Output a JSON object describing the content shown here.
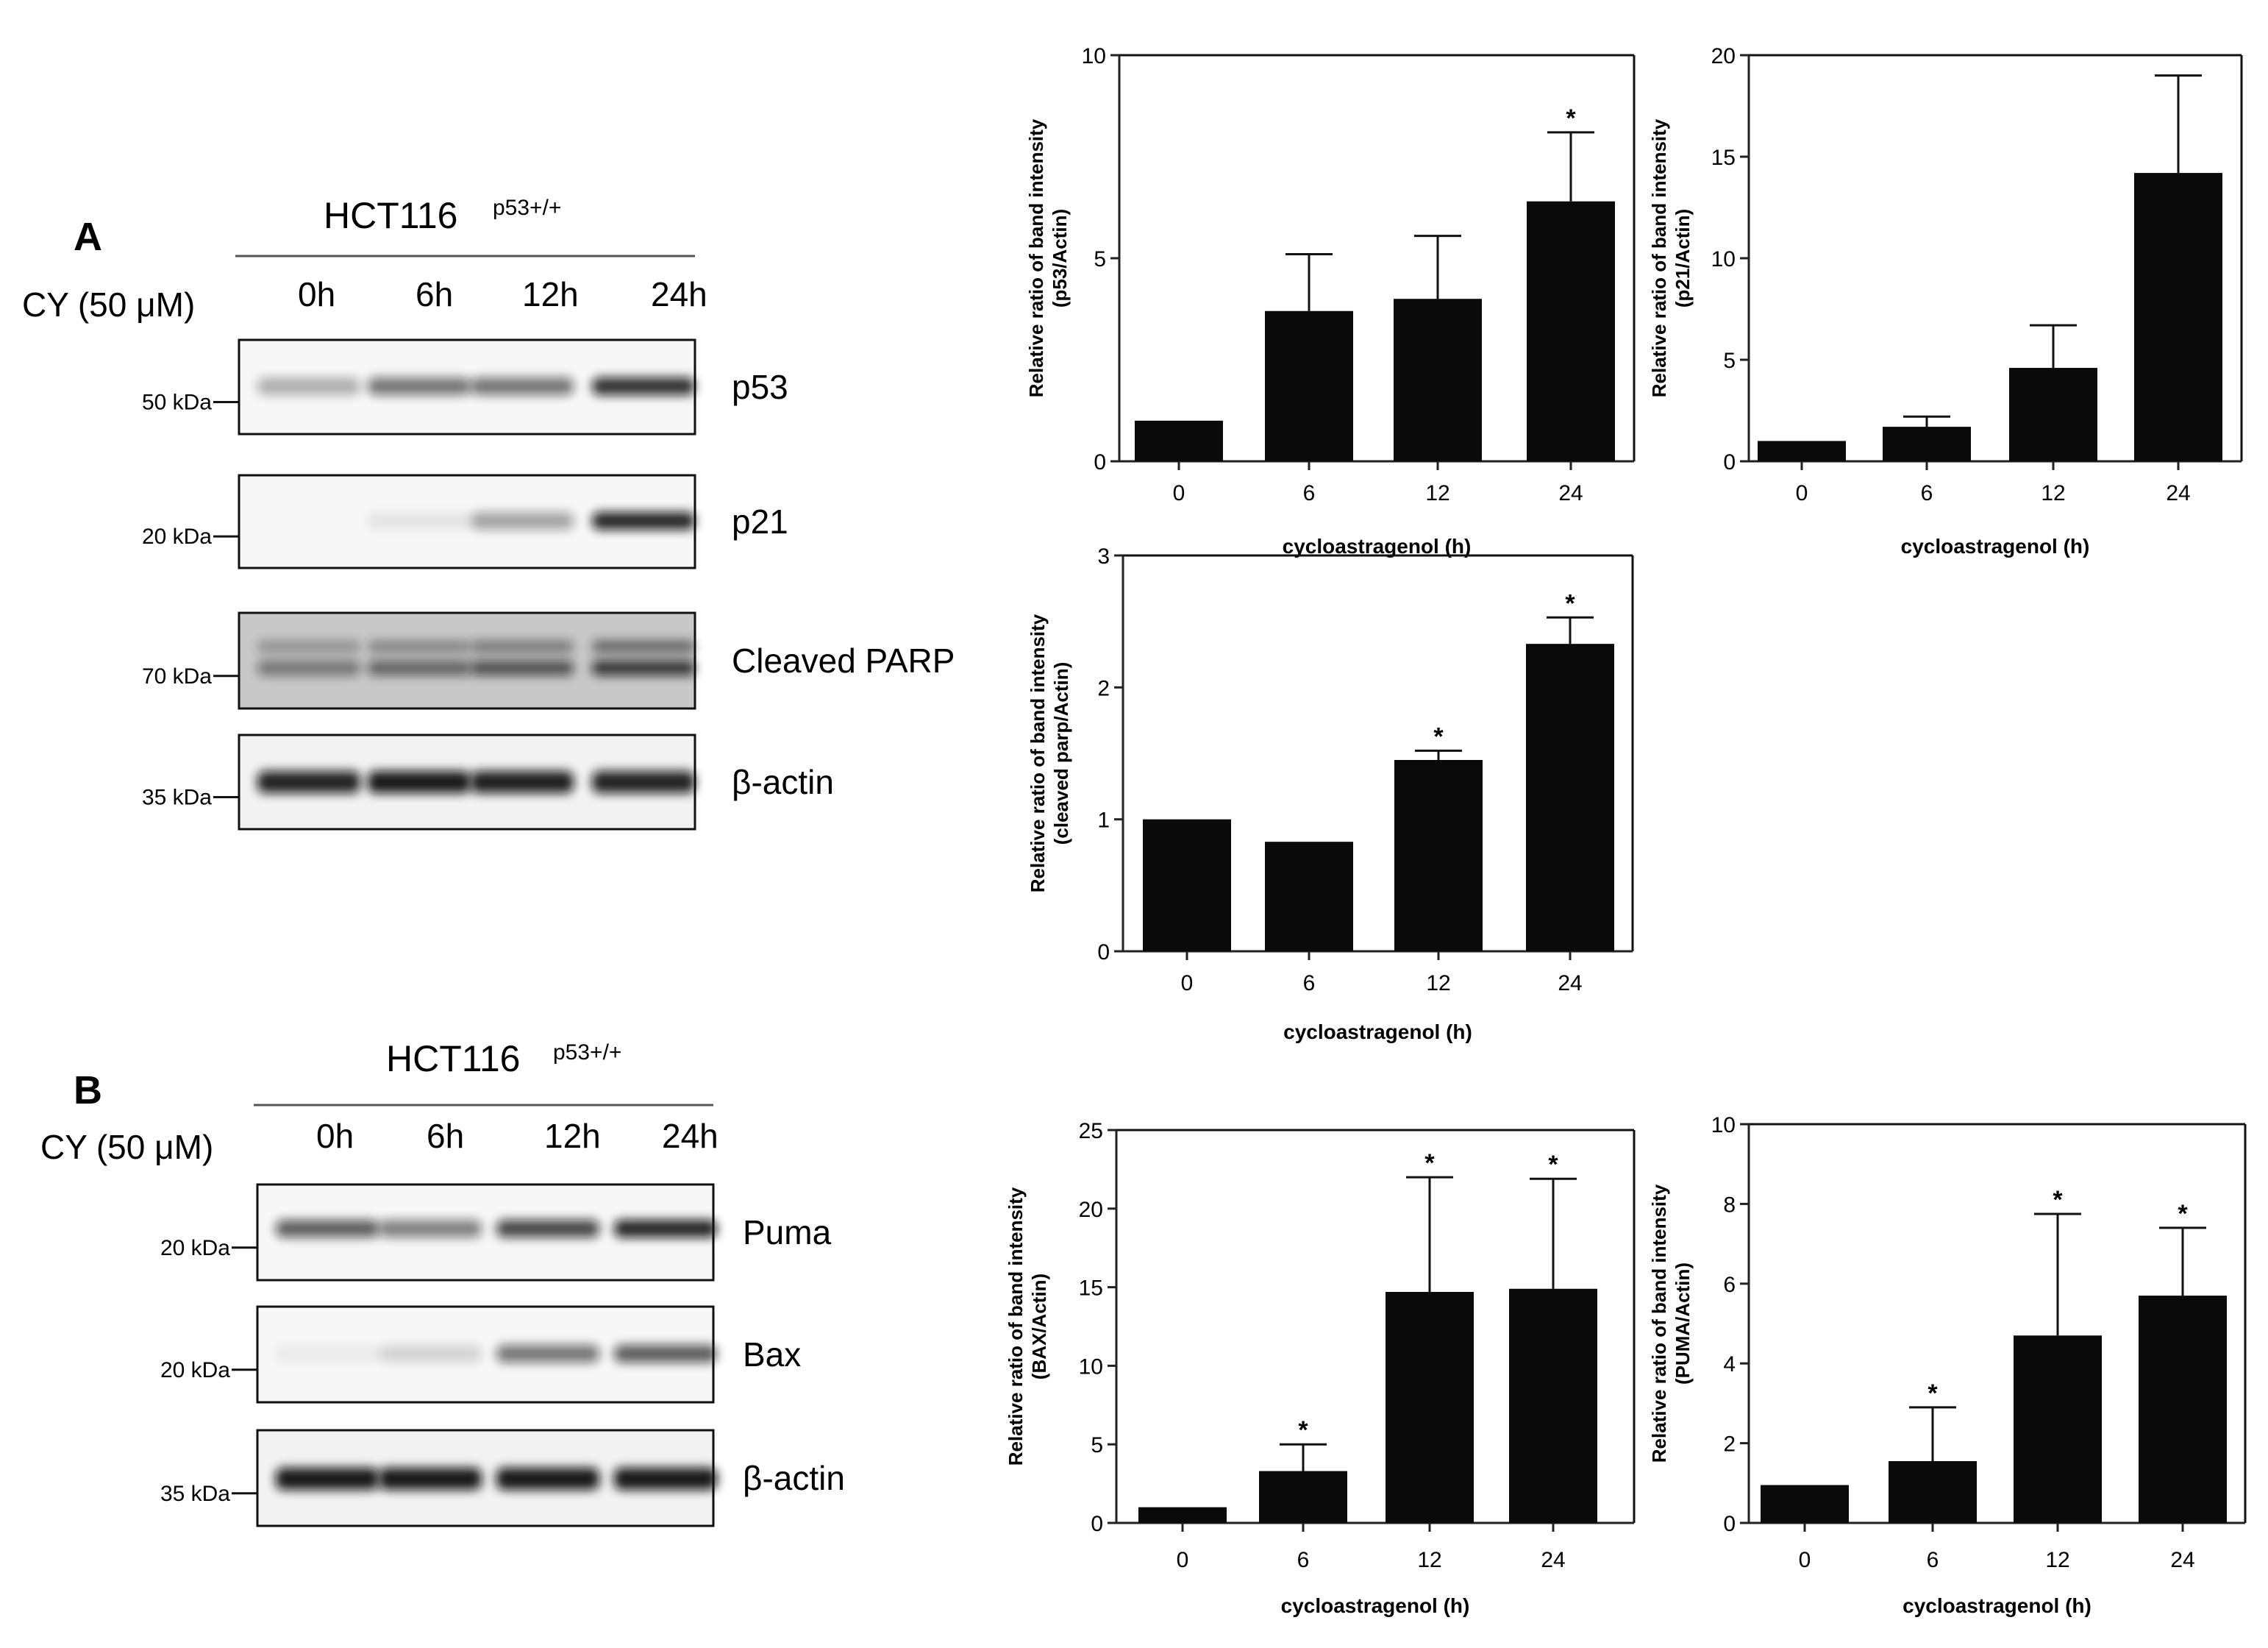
{
  "colors": {
    "bar": "#0a0a0a",
    "axis": "#222222",
    "frame": "#111111",
    "background": "#ffffff"
  },
  "panels": [
    {
      "letter": "A",
      "cell_line": "HCT116",
      "cell_sup": "p53+/+",
      "treatment": "CY (50 μM)",
      "lanes": [
        "0h",
        "6h",
        "12h",
        "24h"
      ],
      "blots": [
        {
          "protein": "p53",
          "kda": "50 kDa",
          "intensity": [
            0.3,
            0.55,
            0.55,
            0.85
          ]
        },
        {
          "protein": "p21",
          "kda": "20 kDa",
          "intensity": [
            0.0,
            0.08,
            0.35,
            0.9
          ]
        },
        {
          "protein": "Cleaved  PARP",
          "kda": "70 kDa",
          "intensity": [
            0.45,
            0.55,
            0.65,
            0.8
          ]
        },
        {
          "protein": "β-actin",
          "kda": "35 kDa",
          "intensity": [
            0.9,
            0.95,
            0.92,
            0.9
          ]
        }
      ]
    },
    {
      "letter": "B",
      "cell_line": "HCT116",
      "cell_sup": "p53+/+",
      "treatment": "CY (50 μM)",
      "lanes": [
        "0h",
        "6h",
        "12h",
        "24h"
      ],
      "blots": [
        {
          "protein": "Puma",
          "kda": "20 kDa",
          "intensity": [
            0.65,
            0.5,
            0.75,
            0.9
          ]
        },
        {
          "protein": "Bax",
          "kda": "20 kDa",
          "intensity": [
            0.05,
            0.15,
            0.55,
            0.65
          ]
        },
        {
          "protein": "β-actin",
          "kda": "35 kDa",
          "intensity": [
            0.95,
            0.95,
            0.95,
            0.95
          ]
        }
      ]
    }
  ],
  "chart_data": [
    {
      "type": "bar",
      "categories": [
        "0",
        "6",
        "12",
        "24"
      ],
      "values": [
        1.0,
        3.7,
        4.0,
        6.4
      ],
      "errors": [
        0,
        1.4,
        1.55,
        1.7
      ],
      "significant": [
        false,
        false,
        false,
        true
      ],
      "ylabel_line1": "Relative ratio of band intensity",
      "ylabel_line2": "(p53/Actin)",
      "xlabel": "cycloastragenol  (h)",
      "ylim": [
        0,
        10
      ],
      "yticks": [
        "0",
        "5",
        "10"
      ],
      "significance_marker": "*"
    },
    {
      "type": "bar",
      "categories": [
        "0",
        "6",
        "12",
        "24"
      ],
      "values": [
        1.0,
        1.7,
        4.6,
        14.2
      ],
      "errors": [
        0,
        0.5,
        2.1,
        4.8
      ],
      "significant": [
        false,
        false,
        false,
        false
      ],
      "ylabel_line1": "Relative ratio of band intensity",
      "ylabel_line2": "(p21/Actin)",
      "xlabel": "cycloastragenol (h)",
      "ylim": [
        0,
        20
      ],
      "yticks": [
        "0",
        "5",
        "10",
        "15",
        "20"
      ],
      "significance_marker": "*"
    },
    {
      "type": "bar",
      "categories": [
        "0",
        "6",
        "12",
        "24"
      ],
      "values": [
        1.0,
        0.83,
        1.45,
        2.33
      ],
      "errors": [
        0,
        0,
        0.07,
        0.2
      ],
      "significant": [
        false,
        false,
        true,
        true
      ],
      "ylabel_line1": "Relative ratio of band intensity",
      "ylabel_line2": "(cleaved parp/Actin)",
      "xlabel": "cycloastragenol (h)",
      "ylim": [
        0,
        3
      ],
      "yticks": [
        "0",
        "1",
        "2",
        "3"
      ],
      "significance_marker": "*"
    },
    {
      "type": "bar",
      "categories": [
        "0",
        "6",
        "12",
        "24"
      ],
      "values": [
        1.0,
        3.3,
        14.7,
        14.9
      ],
      "errors": [
        0,
        1.7,
        7.3,
        7.0
      ],
      "significant": [
        false,
        true,
        true,
        true
      ],
      "ylabel_line1": "Relative ratio of band intensity",
      "ylabel_line2": "(BAX/Actin)",
      "xlabel": "cycloastragenol (h)",
      "ylim": [
        0,
        25
      ],
      "yticks": [
        "0",
        "5",
        "10",
        "15",
        "20",
        "25"
      ],
      "significance_marker": "*"
    },
    {
      "type": "bar",
      "categories": [
        "0",
        "6",
        "12",
        "24"
      ],
      "values": [
        0.95,
        1.55,
        4.7,
        5.7
      ],
      "errors": [
        0,
        1.35,
        3.05,
        1.7
      ],
      "significant": [
        false,
        true,
        true,
        true
      ],
      "ylabel_line1": "Relative ratio of band intensity",
      "ylabel_line2": "(PUMA/Actin)",
      "xlabel": "cycloastragenol (h)",
      "ylim": [
        0,
        10
      ],
      "yticks": [
        "0",
        "2",
        "4",
        "6",
        "8",
        "10"
      ],
      "significance_marker": "*"
    }
  ]
}
